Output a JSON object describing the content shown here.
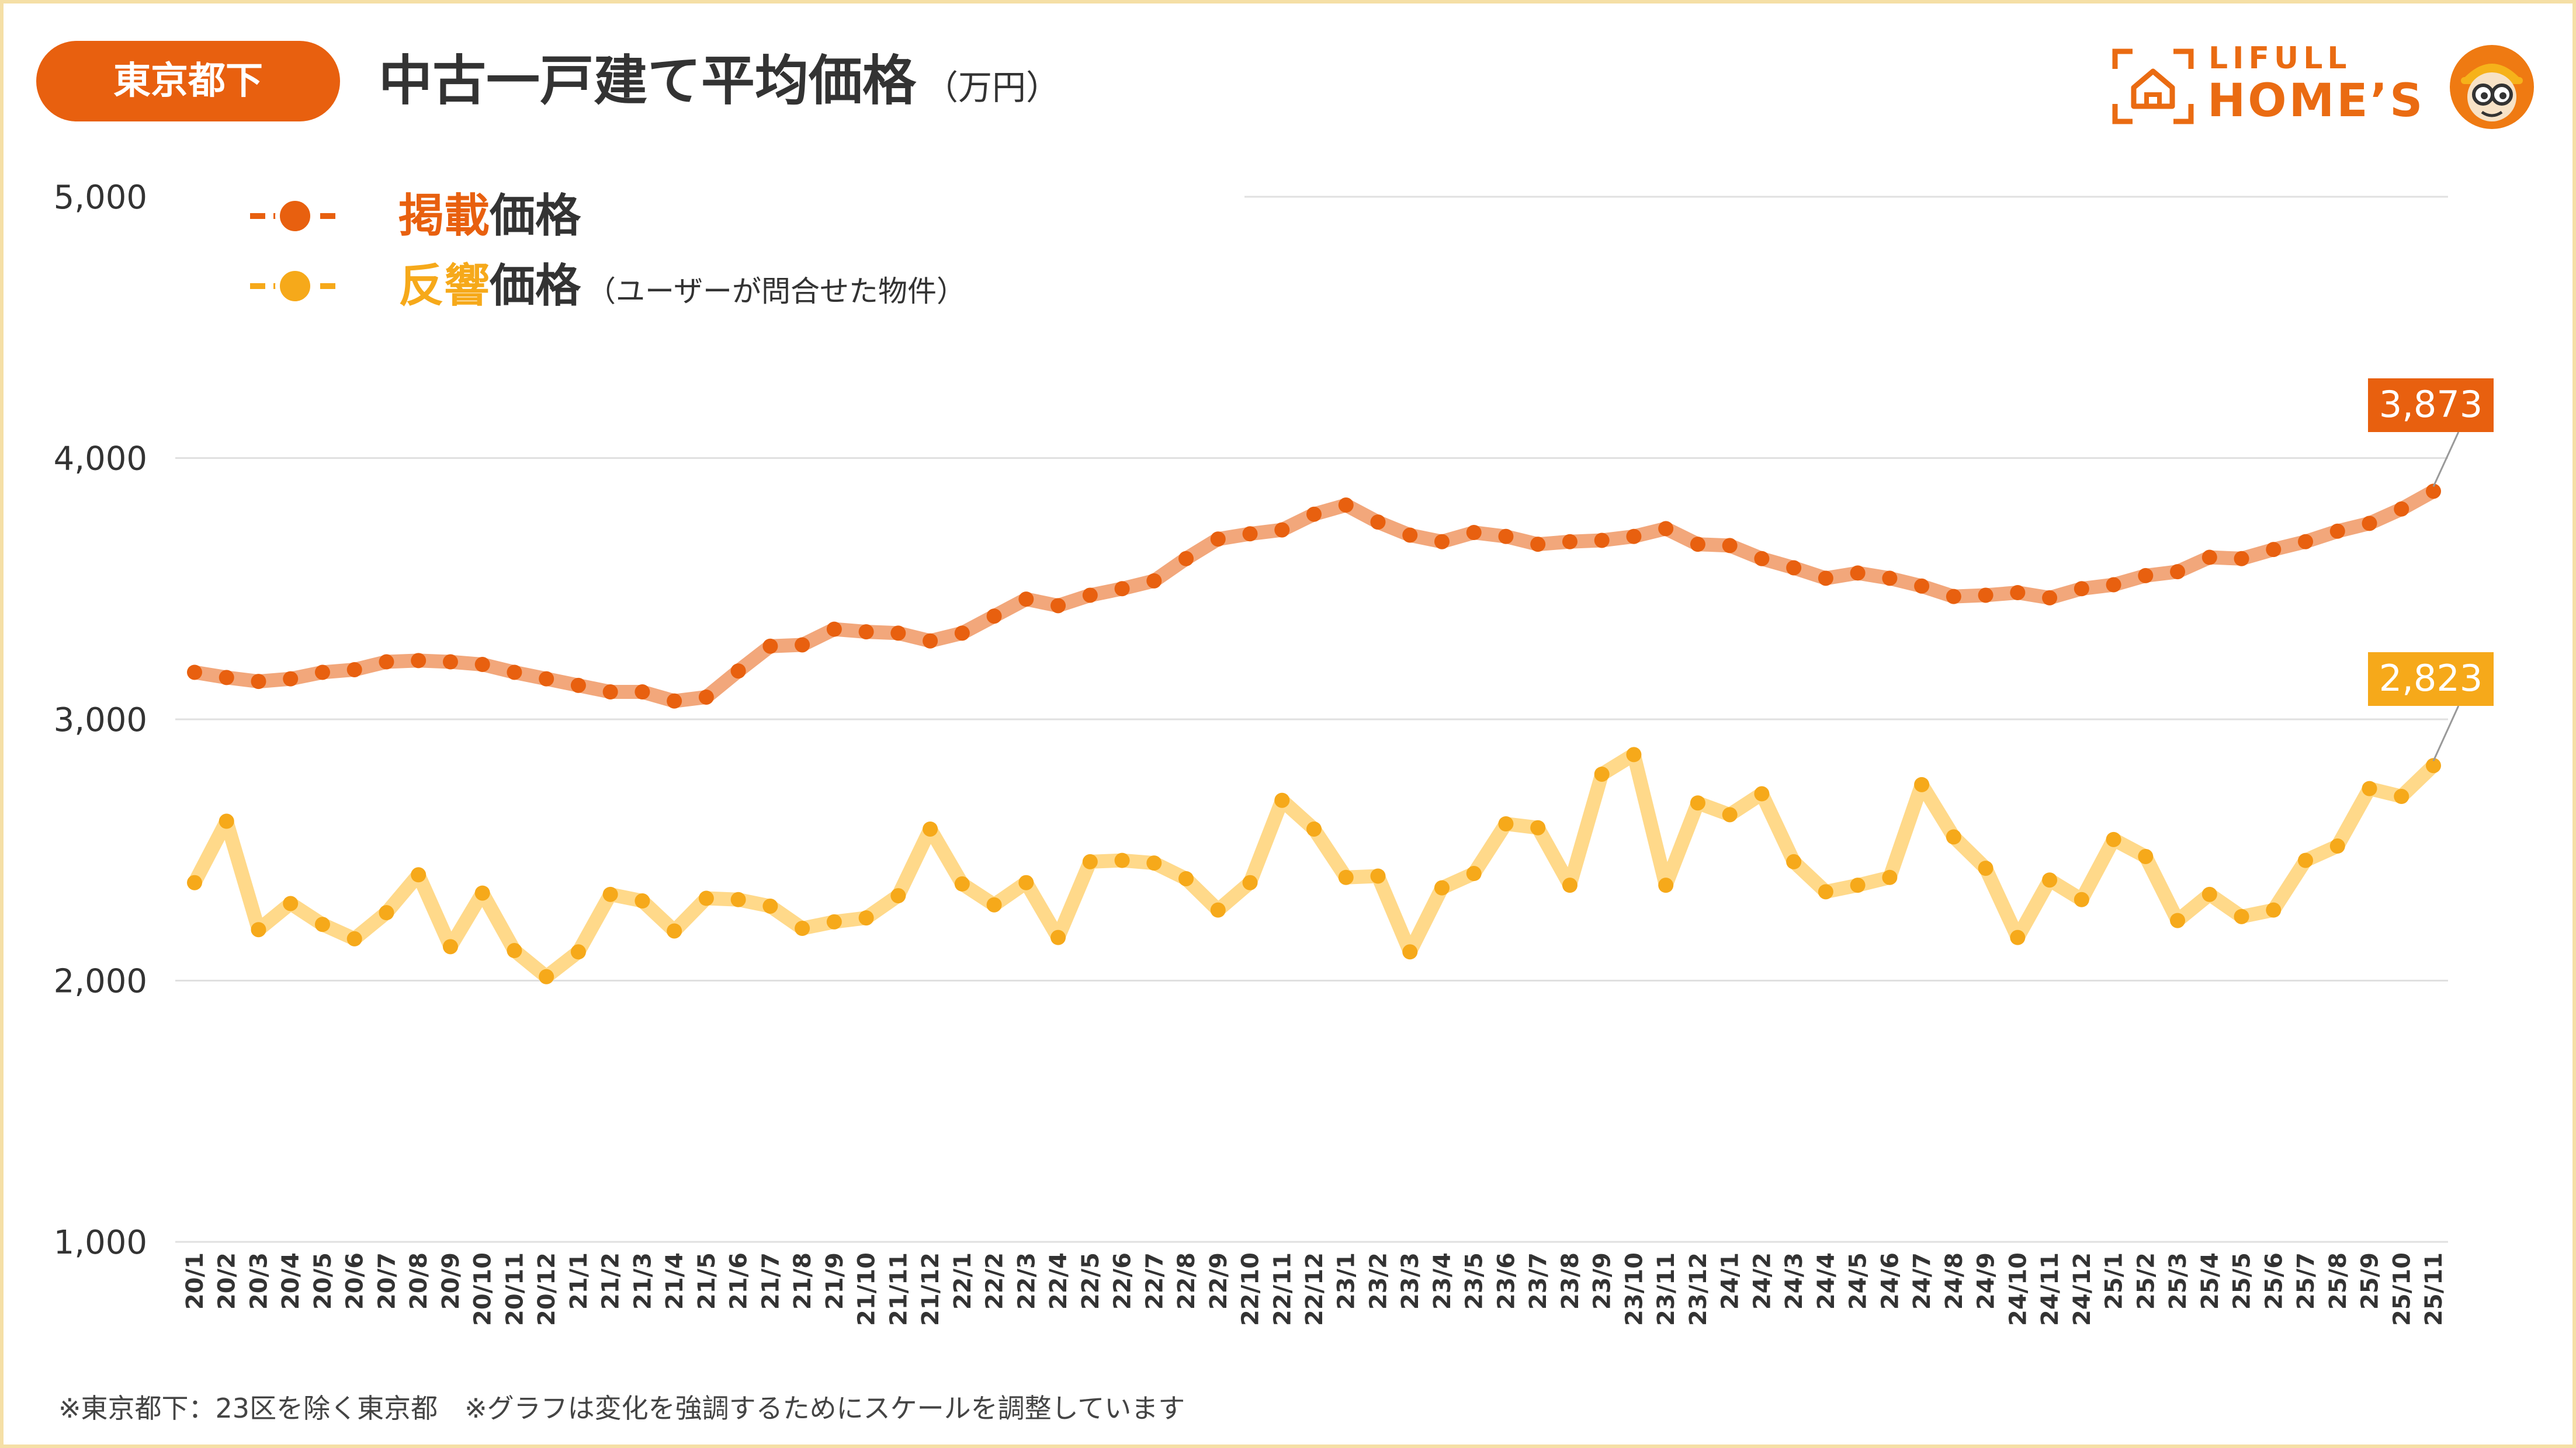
{
  "header": {
    "region": "東京都下",
    "title": "中古一戸建て平均価格",
    "unit": "（万円）"
  },
  "logo": {
    "top": "LIFULL",
    "bottom": "HOME’S"
  },
  "legend": {
    "listed": {
      "highlight": "掲載",
      "rest": "価格",
      "note": ""
    },
    "response": {
      "highlight": "反響",
      "rest": "価格",
      "note": "（ユーザーが問合せた物件）"
    }
  },
  "colors": {
    "listed_point": "#e8600f",
    "listed_line": "#f2a77b",
    "response_point": "#f6a91a",
    "response_line": "#ffd98a",
    "grid": "#e0e0e0"
  },
  "footnote": "※東京都下：23区を除く東京都　※グラフは変化を強調するためにスケールを調整しています",
  "chart_data": {
    "type": "line",
    "title": "中古一戸建て平均価格（万円）",
    "ylim": [
      1000,
      5000
    ],
    "yticks": [
      1000,
      2000,
      3000,
      4000,
      5000
    ],
    "ytick_labels": [
      "1,000",
      "2,000",
      "3,000",
      "4,000",
      "5,000"
    ],
    "categories": [
      "20/1",
      "20/2",
      "20/3",
      "20/4",
      "20/5",
      "20/6",
      "20/7",
      "20/8",
      "20/9",
      "20/10",
      "20/11",
      "20/12",
      "21/1",
      "21/2",
      "21/3",
      "21/4",
      "21/5",
      "21/6",
      "21/7",
      "21/8",
      "21/9",
      "21/10",
      "21/11",
      "21/12",
      "22/1",
      "22/2",
      "22/3",
      "22/4",
      "22/5",
      "22/6",
      "22/7",
      "22/8",
      "22/9",
      "22/10",
      "22/11",
      "22/12",
      "23/1",
      "23/2",
      "23/3",
      "23/4",
      "23/5",
      "23/6",
      "23/7",
      "23/8",
      "23/9",
      "23/10",
      "23/11",
      "23/12",
      "24/1",
      "24/2",
      "24/3",
      "24/4",
      "24/5",
      "24/6",
      "24/7",
      "24/8",
      "24/9",
      "24/10",
      "24/11",
      "24/12",
      "25/1",
      "25/2",
      "25/3",
      "25/4",
      "25/5",
      "25/6",
      "25/7",
      "25/8",
      "25/9",
      "25/10",
      "25/11"
    ],
    "series": [
      {
        "name": "掲載価格",
        "last_label": "3,873",
        "values": [
          3180,
          3160,
          3145,
          3155,
          3180,
          3190,
          3220,
          3225,
          3220,
          3210,
          3180,
          3155,
          3130,
          3105,
          3105,
          3070,
          3085,
          3185,
          3280,
          3285,
          3345,
          3335,
          3330,
          3300,
          3330,
          3395,
          3460,
          3435,
          3475,
          3500,
          3530,
          3615,
          3690,
          3710,
          3725,
          3785,
          3820,
          3755,
          3705,
          3680,
          3715,
          3700,
          3670,
          3680,
          3685,
          3700,
          3730,
          3670,
          3665,
          3615,
          3580,
          3540,
          3560,
          3540,
          3510,
          3470,
          3475,
          3485,
          3465,
          3500,
          3515,
          3550,
          3565,
          3620,
          3615,
          3650,
          3680,
          3720,
          3750,
          3805,
          3873
        ]
      },
      {
        "name": "反響価格",
        "last_label": "2,823",
        "values": [
          2375,
          2610,
          2195,
          2295,
          2215,
          2160,
          2260,
          2405,
          2130,
          2335,
          2115,
          2015,
          2110,
          2330,
          2305,
          2190,
          2315,
          2310,
          2285,
          2200,
          2225,
          2240,
          2325,
          2580,
          2370,
          2290,
          2375,
          2165,
          2455,
          2460,
          2450,
          2390,
          2270,
          2375,
          2690,
          2580,
          2395,
          2400,
          2110,
          2355,
          2410,
          2600,
          2585,
          2365,
          2790,
          2865,
          2365,
          2680,
          2635,
          2715,
          2455,
          2340,
          2365,
          2395,
          2750,
          2550,
          2430,
          2165,
          2385,
          2310,
          2540,
          2475,
          2230,
          2330,
          2245,
          2270,
          2460,
          2515,
          2735,
          2705,
          2823
        ]
      }
    ]
  }
}
